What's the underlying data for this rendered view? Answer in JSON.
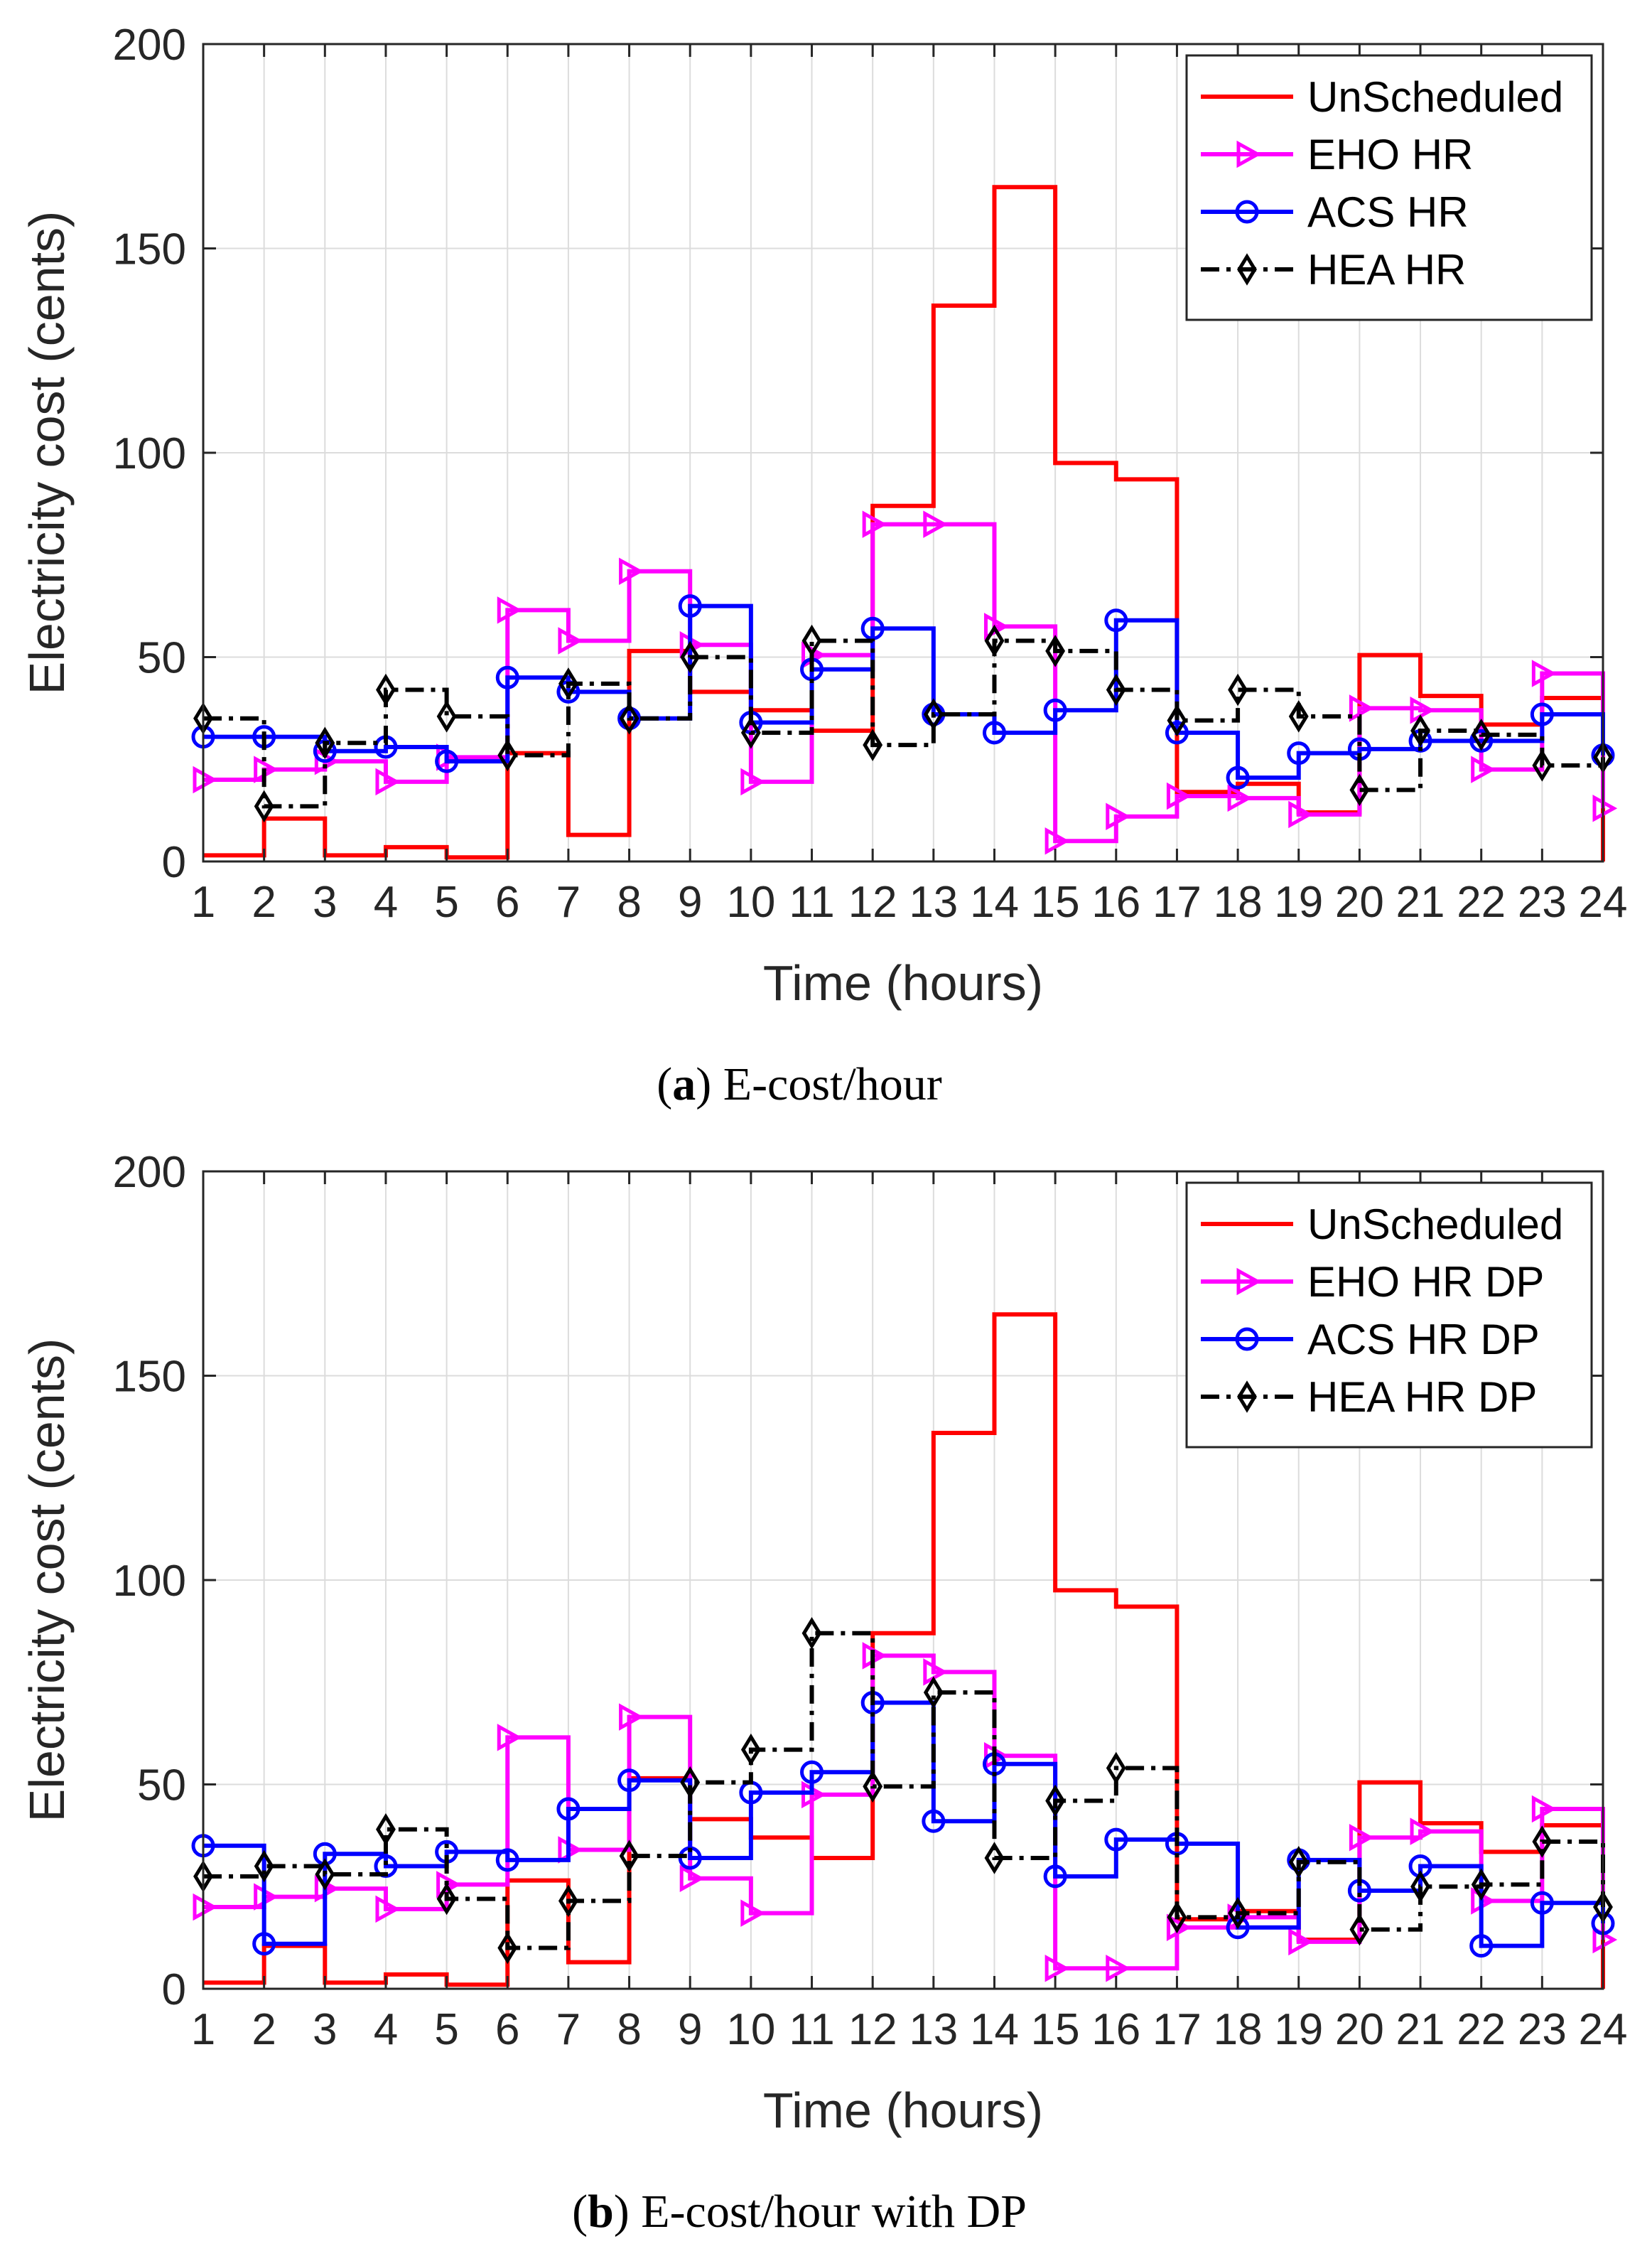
{
  "chart_data": [
    {
      "type": "line",
      "step": true,
      "caption_label": "a",
      "caption_text": "E-cost/hour",
      "xlabel": "Time (hours)",
      "ylabel": "Electricity cost (cents)",
      "ylim": [
        0,
        200
      ],
      "yticks": [
        0,
        50,
        100,
        150,
        200
      ],
      "x": [
        1,
        2,
        3,
        4,
        5,
        6,
        7,
        8,
        9,
        10,
        11,
        12,
        13,
        14,
        15,
        16,
        17,
        18,
        19,
        20,
        21,
        22,
        23,
        24
      ],
      "grid": true,
      "legend_position": "top-right",
      "series": [
        {
          "name": "UnScheduled",
          "color": "#ff0000",
          "marker": "none",
          "dash": "solid",
          "values": [
            1.5,
            10.5,
            1.5,
            3.5,
            1,
            26.5,
            6.5,
            51.5,
            41.5,
            37,
            32,
            87,
            136,
            165,
            97.5,
            93.5,
            17,
            19,
            12,
            50.5,
            40.5,
            33.5,
            40,
            0
          ]
        },
        {
          "name": "EHO HR",
          "color": "#ff00ff",
          "marker": "triangle-right",
          "dash": "solid",
          "values": [
            20,
            22.5,
            24.5,
            19.5,
            25.5,
            61.5,
            54,
            71,
            53,
            19.5,
            50.5,
            82.5,
            82.5,
            57.5,
            5,
            11,
            16,
            15.5,
            11.5,
            37.5,
            37,
            22.5,
            46,
            13
          ]
        },
        {
          "name": "ACS HR",
          "color": "#0000ff",
          "marker": "circle",
          "dash": "solid",
          "values": [
            30.5,
            30.5,
            27,
            28,
            24.5,
            45,
            41.5,
            35,
            62.5,
            34,
            47,
            57,
            36,
            31.5,
            37,
            59,
            31.5,
            20.5,
            26.5,
            27.5,
            29.5,
            29.5,
            36,
            26
          ]
        },
        {
          "name": "HEA HR",
          "color": "#000000",
          "marker": "diamond",
          "dash": "dashdot",
          "values": [
            35,
            13.5,
            29,
            42,
            35.5,
            26,
            43.5,
            35,
            50,
            31.5,
            54,
            28.5,
            36,
            54,
            51.5,
            42,
            34.5,
            42,
            35.5,
            17.5,
            32,
            31,
            23.5,
            25.5
          ]
        }
      ]
    },
    {
      "type": "line",
      "step": true,
      "caption_label": "b",
      "caption_text": "E-cost/hour with DP",
      "xlabel": "Time (hours)",
      "ylabel": "Electricity cost (cents)",
      "ylim": [
        0,
        200
      ],
      "yticks": [
        0,
        50,
        100,
        150,
        200
      ],
      "x": [
        1,
        2,
        3,
        4,
        5,
        6,
        7,
        8,
        9,
        10,
        11,
        12,
        13,
        14,
        15,
        16,
        17,
        18,
        19,
        20,
        21,
        22,
        23,
        24
      ],
      "grid": true,
      "legend_position": "top-right",
      "series": [
        {
          "name": "UnScheduled",
          "color": "#ff0000",
          "marker": "none",
          "dash": "solid",
          "values": [
            1.5,
            10.5,
            1.5,
            3.5,
            1,
            26.5,
            6.5,
            51.5,
            41.5,
            37,
            32,
            87,
            136,
            165,
            97.5,
            93.5,
            17,
            19,
            12,
            50.5,
            40.5,
            33.5,
            40,
            0
          ]
        },
        {
          "name": "EHO HR DP",
          "color": "#ff00ff",
          "marker": "triangle-right",
          "dash": "solid",
          "values": [
            20,
            22.5,
            24.5,
            19.5,
            25.5,
            61.5,
            34,
            66.5,
            27,
            18.5,
            47.5,
            81.5,
            77.5,
            57,
            5,
            5,
            15,
            17.5,
            11.5,
            37,
            38.5,
            21.5,
            44,
            12
          ]
        },
        {
          "name": "ACS HR DP",
          "color": "#0000ff",
          "marker": "circle",
          "dash": "solid",
          "values": [
            35,
            11,
            33,
            30,
            33.5,
            31.5,
            44,
            51,
            32,
            48,
            53,
            70,
            41,
            55,
            27.5,
            36.5,
            35.5,
            15,
            31.5,
            24,
            30,
            10.5,
            21,
            16
          ]
        },
        {
          "name": "HEA HR DP",
          "color": "#000000",
          "marker": "diamond",
          "dash": "dashdot",
          "values": [
            27.5,
            30,
            28,
            39,
            22,
            10,
            21.5,
            32.5,
            50.5,
            58.5,
            87,
            49.5,
            72.5,
            32,
            46,
            54,
            17.5,
            18.5,
            31,
            14.5,
            25,
            25.5,
            36,
            20
          ]
        }
      ]
    }
  ]
}
